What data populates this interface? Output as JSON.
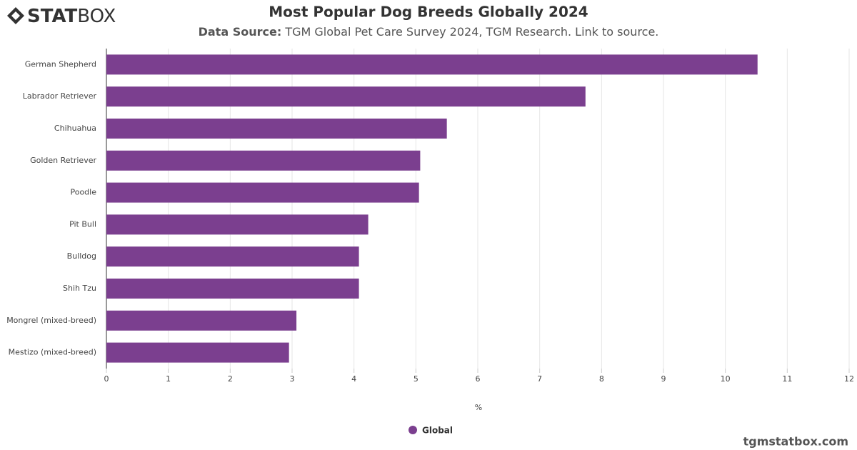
{
  "brand": {
    "logo_bold": "STAT",
    "logo_light": "BOX",
    "footer": "tgmstatbox.com"
  },
  "chart_data": {
    "type": "bar",
    "orientation": "horizontal",
    "title": "Most Popular Dog Breeds Globally 2024",
    "source_label": "Data Source:",
    "source": "TGM Global Pet Care Survey 2024, TGM Research. Link to source.",
    "categories": [
      "German Shepherd",
      "Labrador Retriever",
      "Chihuahua",
      "Golden Retriever",
      "Poodle",
      "Pit Bull",
      "Bulldog",
      "Shih Tzu",
      "Mongrel (mixed-breed)",
      "Mestizo (mixed-breed)"
    ],
    "series": [
      {
        "name": "Global",
        "color": "#7b3f8f",
        "values": [
          10.52,
          7.74,
          5.5,
          5.07,
          5.05,
          4.23,
          4.08,
          4.08,
          3.07,
          2.95
        ]
      }
    ],
    "xlabel": "%",
    "xlim": [
      0,
      12
    ],
    "xticks": [
      0,
      1,
      2,
      3,
      4,
      5,
      6,
      7,
      8,
      9,
      10,
      11,
      12
    ],
    "grid": true
  }
}
